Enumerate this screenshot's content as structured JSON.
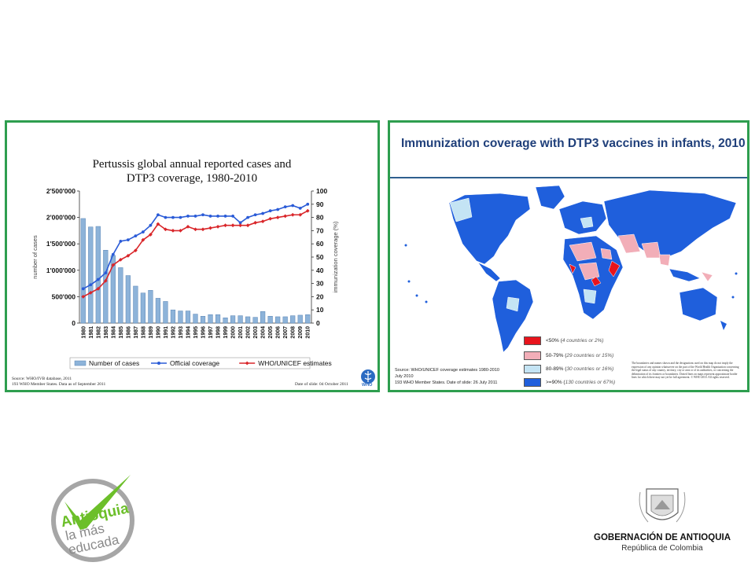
{
  "left_chart": {
    "title_line1": "Pertussis global annual reported cases and",
    "title_line2": "DTP3 coverage, 1980-2010",
    "ylabel_left": "number of cases",
    "ylabel_right": "immunization coverage (%)",
    "source_line1": "Source: WHO/IVB database, 2011",
    "source_line2": "193 WHO Member States. Data as of September 2011",
    "date_of_slide": "Date of slide: 04 October 2011",
    "who_logo_text": "WHO"
  },
  "chart_data": {
    "type": "bar",
    "title": "Pertussis global annual reported cases and DTP3 coverage, 1980-2010",
    "x": [
      "1980",
      "1981",
      "1982",
      "1983",
      "1984",
      "1985",
      "1986",
      "1987",
      "1988",
      "1989",
      "1990",
      "1991",
      "1992",
      "1993",
      "1994",
      "1995",
      "1996",
      "1997",
      "1998",
      "1999",
      "2000",
      "2001",
      "2002",
      "2003",
      "2004",
      "2005",
      "2006",
      "2007",
      "2008",
      "2009",
      "2010"
    ],
    "y_left_ticks": [
      "0",
      "500'000",
      "1'000'000",
      "1'500'000",
      "2'000'000",
      "2'500'000"
    ],
    "y_right_ticks": [
      "0",
      "10",
      "20",
      "30",
      "40",
      "50",
      "60",
      "70",
      "80",
      "90",
      "100"
    ],
    "ylim_left": [
      0,
      2500000
    ],
    "ylim_right": [
      0,
      100
    ],
    "series": [
      {
        "name": "Number of cases",
        "kind": "bar",
        "axis": "left",
        "color": "#8db3d9",
        "values": [
          1980000,
          1820000,
          1830000,
          1380000,
          1280000,
          1050000,
          900000,
          700000,
          570000,
          620000,
          470000,
          410000,
          250000,
          230000,
          230000,
          170000,
          130000,
          160000,
          160000,
          100000,
          140000,
          140000,
          120000,
          110000,
          220000,
          130000,
          120000,
          120000,
          140000,
          150000,
          160000
        ]
      },
      {
        "name": "Official coverage",
        "kind": "line",
        "axis": "right",
        "color": "#2a5bd7",
        "values": [
          26,
          29,
          33,
          38,
          52,
          62,
          63,
          66,
          69,
          74,
          82,
          80,
          80,
          80,
          81,
          81,
          82,
          81,
          81,
          81,
          81,
          76,
          80,
          82,
          83,
          85,
          86,
          88,
          89,
          87,
          90
        ]
      },
      {
        "name": "WHO/UNICEF estimates",
        "kind": "line",
        "axis": "right",
        "color": "#d9262a",
        "values": [
          20,
          23,
          26,
          32,
          44,
          48,
          51,
          55,
          63,
          67,
          75,
          71,
          70,
          70,
          73,
          71,
          71,
          72,
          73,
          74,
          74,
          74,
          74,
          76,
          77,
          79,
          80,
          81,
          82,
          82,
          85
        ]
      }
    ],
    "legend": "bottom",
    "grid": false
  },
  "right_map": {
    "title": "Immunization coverage with DTP3 vaccines in infants, 2010",
    "legend": [
      {
        "label": "<50% (",
        "note": "4 countries or 2%)",
        "color": "#e8141c"
      },
      {
        "label": "50-79% (",
        "note": "29 countries or 15%)",
        "color": "#f2aeb8"
      },
      {
        "label": "80-89% (",
        "note": "30 countries or 16%)",
        "color": "#c4e4f4"
      },
      {
        "label": ">=90% (",
        "note": "130 countries or 67%)",
        "color": "#1f5fdc"
      }
    ],
    "source_line1": "Source: WHO/UNICEF coverage estimates 1980-2010",
    "source_line2": "July 2010",
    "source_line3": "193 WHO Member States. Date of slide: 26 July 2011",
    "disclaimer": "The boundaries and names shown and the designations used on this map do not imply the expression of any opinion whatsoever on the part of the World Health Organization concerning the legal status of any country, territory, city or area or of its authorities, or concerning the delimitation of its frontiers or boundaries. Dotted lines on maps represent approximate border lines for which there may not yet be full agreement. © WHO 2010. All rights reserved."
  },
  "logo_left": {
    "line1": "Antioquia",
    "line2": "la más",
    "line3": "educada",
    "color": "#6cbf2a"
  },
  "logo_right": {
    "name": "GOBERNACIÓN DE ANTIOQUIA",
    "sub": "República de Colombia"
  }
}
